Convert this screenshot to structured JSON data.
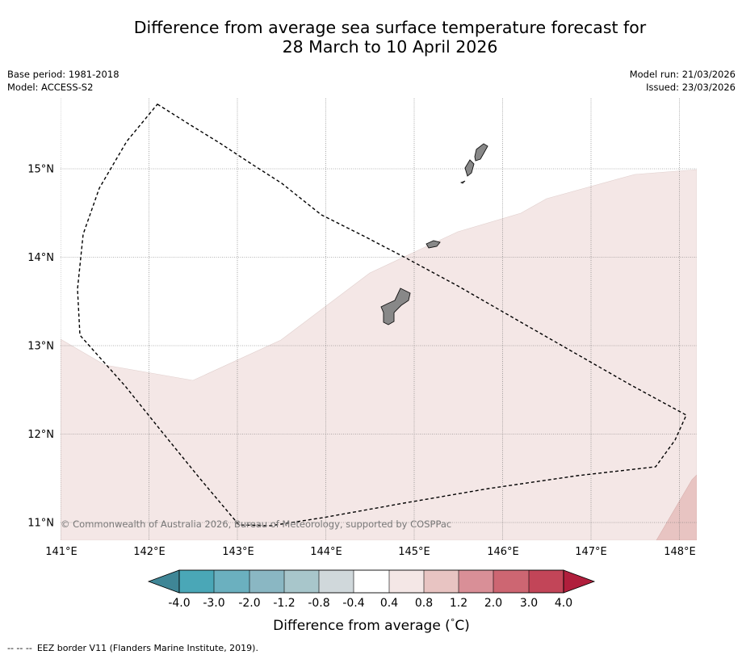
{
  "title": {
    "line1": "Difference from average sea surface temperature forecast for",
    "line2": "28 March to 10 April 2026"
  },
  "meta_left": {
    "base_period": "Base period: 1981-2018",
    "model": "Model: ACCESS-S2"
  },
  "meta_right": {
    "model_run": "Model run: 21/03/2026",
    "issued": "Issued: 23/03/2026"
  },
  "map": {
    "longitude_labels": [
      "141°E",
      "142°E",
      "143°E",
      "144°E",
      "145°E",
      "146°E",
      "147°E",
      "148°E"
    ],
    "latitude_labels": [
      "15°N",
      "14°N",
      "13°N",
      "12°N",
      "11°N"
    ],
    "longitude_range": [
      141.0,
      148.2
    ],
    "latitude_range": [
      10.8,
      15.8
    ],
    "copyright": "© Commonwealth of Australia 2026, Bureau of Meteorology, supported by COSPPac",
    "anomaly_classes_shown": [
      "0.4 to 0.8",
      "0.8 to 1.2"
    ],
    "islands": [
      "guam-island",
      "rota-island",
      "tinian-island",
      "saipan-island"
    ]
  },
  "colorbar": {
    "tick_labels": [
      "-4.0",
      "-3.0",
      "-2.0",
      "-1.2",
      "-0.8",
      "-0.4",
      "0.4",
      "0.8",
      "1.2",
      "2.0",
      "3.0",
      "4.0"
    ],
    "colors": [
      "#4aa7b7",
      "#6bb0bf",
      "#8ab7c3",
      "#a8c6cb",
      "#d0d8db",
      "#ffffff",
      "#f4e7e6",
      "#e8c4c2",
      "#d98f97",
      "#cd6672",
      "#c24558"
    ],
    "extend_low_color": "#3f8696",
    "extend_high_color": "#b01e3c",
    "label": "Difference from average (°C)",
    "label_prefix": "Difference from average (",
    "label_degree": "°",
    "label_unit": "C)"
  },
  "legend": {
    "dash_symbol": "--  --  --",
    "text": "EEZ border V11 (Flanders Marine Institute, 2019)."
  },
  "colors": {
    "anomaly_0_4_to_0_8": "#f4e7e6",
    "anomaly_0_8_to_1_2": "#e8c4c2",
    "land": "#888888",
    "grid": "#777777"
  }
}
